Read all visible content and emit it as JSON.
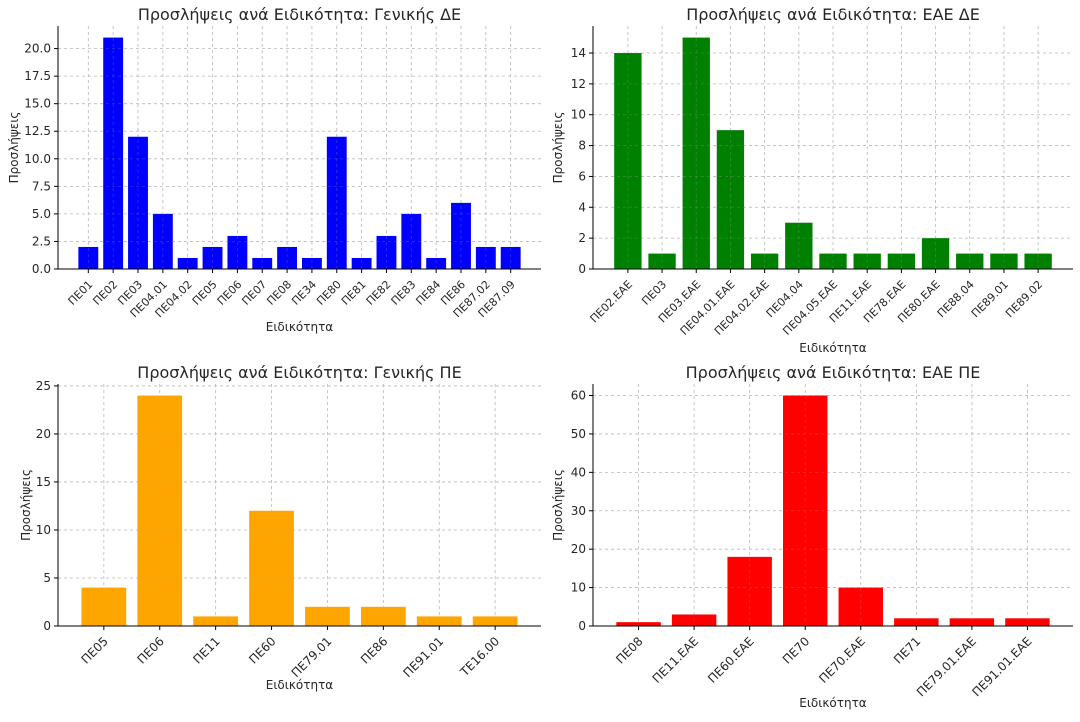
{
  "chart_data": [
    {
      "type": "bar",
      "title": "Προσλήψεις ανά Ειδικότητα: Γενικής ΔΕ",
      "xlabel": "Ειδικότητα",
      "ylabel": "Προσλήψεις",
      "color": "#0000ff",
      "categories": [
        "ΠΕ01",
        "ΠΕ02",
        "ΠΕ03",
        "ΠΕ04.01",
        "ΠΕ04.02",
        "ΠΕ05",
        "ΠΕ06",
        "ΠΕ07",
        "ΠΕ08",
        "ΠΕ34",
        "ΠΕ80",
        "ΠΕ81",
        "ΠΕ82",
        "ΠΕ83",
        "ΠΕ84",
        "ΠΕ86",
        "ΠΕ87.02",
        "ΠΕ87.09"
      ],
      "values": [
        2,
        21,
        12,
        5,
        1,
        2,
        3,
        1,
        2,
        1,
        12,
        1,
        3,
        5,
        1,
        6,
        2,
        2
      ],
      "ylim": [
        0,
        22.05
      ],
      "yticks": [
        0,
        2.5,
        5,
        7.5,
        10,
        12.5,
        15,
        17.5,
        20
      ],
      "ytick_labels": [
        "0.0",
        "2.5",
        "5.0",
        "7.5",
        "10.0",
        "12.5",
        "15.0",
        "17.5",
        "20.0"
      ]
    },
    {
      "type": "bar",
      "title": "Προσλήψεις ανά Ειδικότητα: ΕΑΕ ΔΕ",
      "xlabel": "Ειδικότητα",
      "ylabel": "Προσλήψεις",
      "color": "#008000",
      "categories": [
        "ΠΕ02.ΕΑΕ",
        "ΠΕ03",
        "ΠΕ03.ΕΑΕ",
        "ΠΕ04.01.ΕΑΕ",
        "ΠΕ04.02.ΕΑΕ",
        "ΠΕ04.04",
        "ΠΕ04.05.ΕΑΕ",
        "ΠΕ11.ΕΑΕ",
        "ΠΕ78.ΕΑΕ",
        "ΠΕ80.ΕΑΕ",
        "ΠΕ88.04",
        "ΠΕ89.01",
        "ΠΕ89.02"
      ],
      "values": [
        14,
        1,
        15,
        9,
        1,
        3,
        1,
        1,
        1,
        2,
        1,
        1,
        1
      ],
      "ylim": [
        0,
        15.75
      ],
      "yticks": [
        0,
        2,
        4,
        6,
        8,
        10,
        12,
        14
      ],
      "ytick_labels": [
        "0",
        "2",
        "4",
        "6",
        "8",
        "10",
        "12",
        "14"
      ]
    },
    {
      "type": "bar",
      "title": "Προσλήψεις ανά Ειδικότητα: Γενικής ΠΕ",
      "xlabel": "Ειδικότητα",
      "ylabel": "Προσλήψεις",
      "color": "#ffa500",
      "categories": [
        "ΠΕ05",
        "ΠΕ06",
        "ΠΕ11",
        "ΠΕ60",
        "ΠΕ79.01",
        "ΠΕ86",
        "ΠΕ91.01",
        "ΤΕ16.00"
      ],
      "values": [
        4,
        24,
        1,
        12,
        2,
        2,
        1,
        1
      ],
      "ylim": [
        0,
        25.2
      ],
      "yticks": [
        0,
        5,
        10,
        15,
        20,
        25
      ],
      "ytick_labels": [
        "0",
        "5",
        "10",
        "15",
        "20",
        "25"
      ]
    },
    {
      "type": "bar",
      "title": "Προσλήψεις ανά Ειδικότητα: ΕΑΕ ΠΕ",
      "xlabel": "Ειδικότητα",
      "ylabel": "Προσλήψεις",
      "color": "#ff0000",
      "categories": [
        "ΠΕ08",
        "ΠΕ11.ΕΑΕ",
        "ΠΕ60.ΕΑΕ",
        "ΠΕ70",
        "ΠΕ70.ΕΑΕ",
        "ΠΕ71",
        "ΠΕ79.01.ΕΑΕ",
        "ΠΕ91.01.ΕΑΕ"
      ],
      "values": [
        1,
        3,
        18,
        60,
        10,
        2,
        2,
        2
      ],
      "ylim": [
        0,
        63
      ],
      "yticks": [
        0,
        10,
        20,
        30,
        40,
        50,
        60
      ],
      "ytick_labels": [
        "0",
        "10",
        "20",
        "30",
        "40",
        "50",
        "60"
      ]
    }
  ]
}
